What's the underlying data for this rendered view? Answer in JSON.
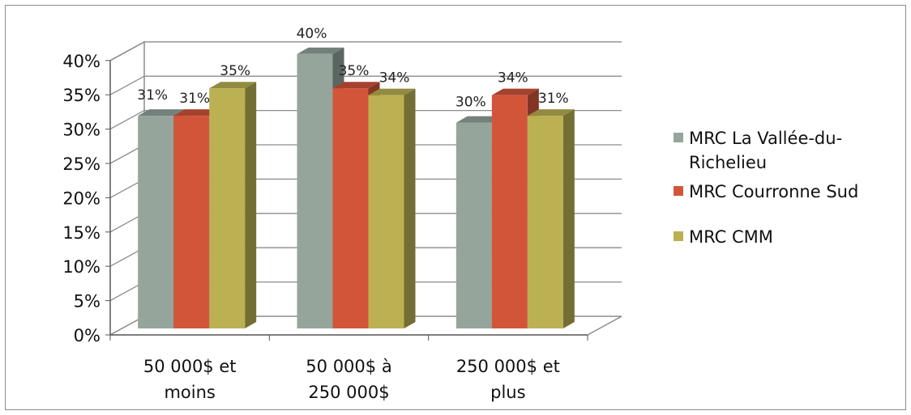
{
  "chart_data": {
    "type": "bar",
    "categories": [
      [
        "50 000$ et",
        "moins"
      ],
      [
        "50 000$ à",
        "250 000$"
      ],
      [
        "250 000$ et",
        "plus"
      ]
    ],
    "series": [
      {
        "name": "MRC La Vallée-du-Richelieu",
        "legend_lines": [
          "MRC La Vallée-du-",
          "Richelieu"
        ],
        "values": [
          31,
          40,
          30
        ],
        "color": "#95a59c"
      },
      {
        "name": "MRC Courronne Sud",
        "legend_lines": [
          "MRC Courronne Sud"
        ],
        "values": [
          31,
          35,
          34
        ],
        "color": "#d2553a"
      },
      {
        "name": "MRC CMM",
        "legend_lines": [
          "MRC CMM"
        ],
        "values": [
          35,
          34,
          31
        ],
        "color": "#bbb152"
      }
    ],
    "yticks": [
      "0%",
      "5%",
      "10%",
      "15%",
      "20%",
      "25%",
      "30%",
      "35%",
      "40%"
    ],
    "ylim": [
      0,
      40
    ],
    "grid": true,
    "legend_position": "right",
    "value_suffix": "%"
  }
}
